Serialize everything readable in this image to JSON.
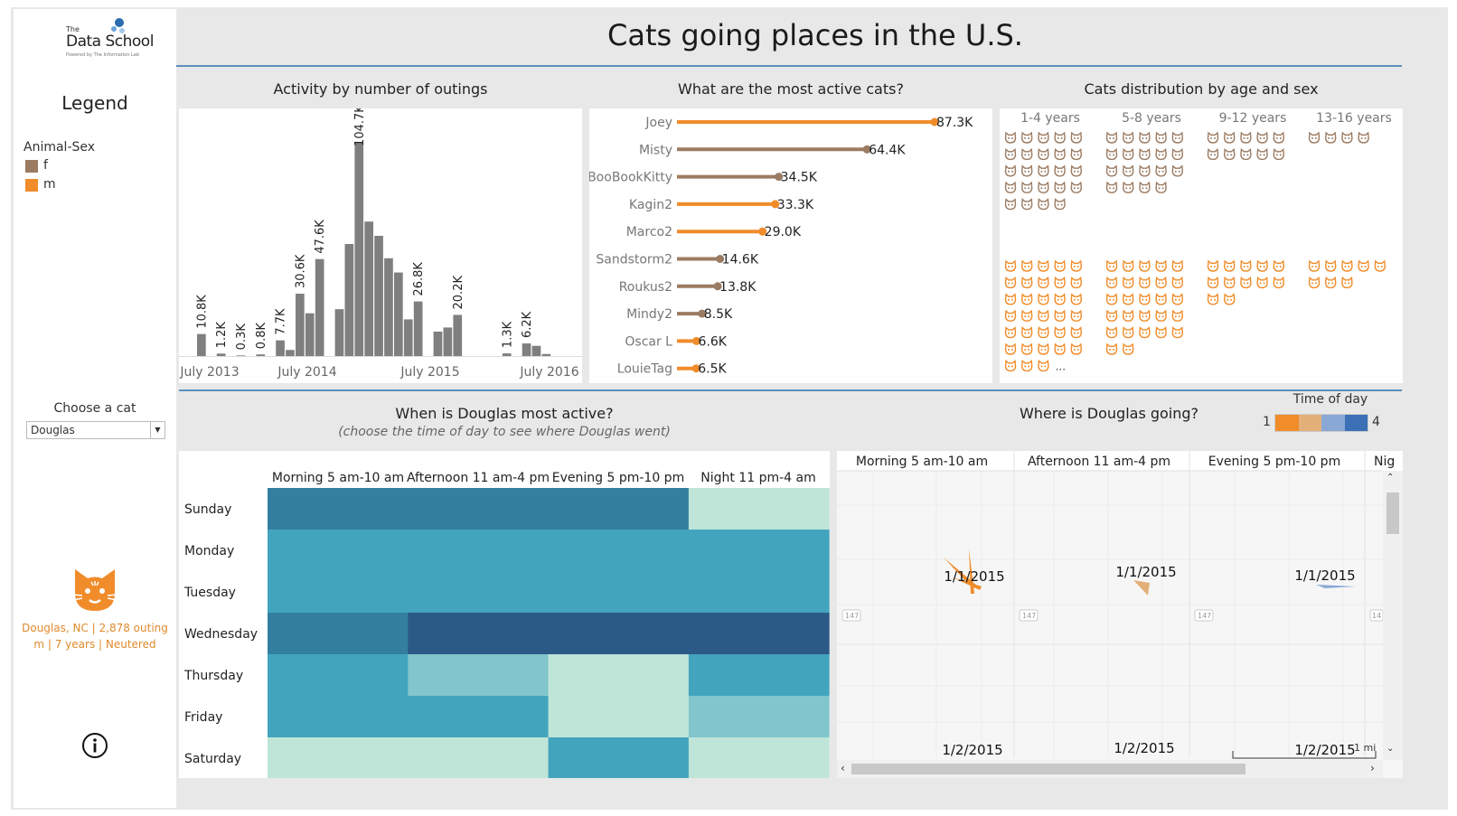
{
  "title": "Cats going places in the U.S.",
  "sidebar": {
    "logo_small": "The",
    "logo_main": "Data School",
    "logo_tag": "Powered by The Information Lab",
    "legend_title": "Legend",
    "legend_heading": "Animal-Sex",
    "legend_items": [
      {
        "label": "f",
        "color": "#9b7b62"
      },
      {
        "label": "m",
        "color": "#f08c2a"
      }
    ],
    "choose_label": "Choose a cat",
    "selected_cat": "Douglas",
    "cat_icon": "cat-face-icon",
    "cat_info_line1": "Douglas, NC | 2,878 outing",
    "cat_info_line2": "m | 7 years | Neutered",
    "info_icon": "info-icon"
  },
  "activity": {
    "title": "Activity by number of outings",
    "x_ticks": [
      "July 2013",
      "July 2014",
      "July 2015",
      "July 2016"
    ]
  },
  "active_cats": {
    "title": "What are the most active cats?"
  },
  "distribution": {
    "title": "Cats distribution by age and sex",
    "age_groups": [
      "1-4 years",
      "5-8 years",
      "9-12 years",
      "13-16 years"
    ],
    "ellipsis": "..."
  },
  "heatmap": {
    "title": "When is Douglas most active?",
    "subtitle": "(choose the time of day to see where Douglas went)"
  },
  "map": {
    "title": "Where is Douglas going?",
    "legend_title": "Time of day",
    "legend_min": "1",
    "legend_max": "4",
    "legend_colors": [
      "#f08c2a",
      "#e4b07a",
      "#8aa8d6",
      "#3b6fb6"
    ],
    "columns": [
      "Morning 5 am-10 am",
      "Afternoon 11 am-4 pm",
      "Evening 5 pm-10 pm",
      "Nig"
    ],
    "row_labels": [
      "1/1/2015",
      "1/1/2015",
      "1/1/2015",
      "1/2/2015",
      "1/2/2015",
      "1/2/2015"
    ],
    "road_labels": [
      "147",
      "147",
      "147",
      "14"
    ],
    "scale_label": "1 mi"
  },
  "chart_data": [
    {
      "type": "bar",
      "title": "Activity by number of outings",
      "x": [
        "2013-05",
        "2013-06",
        "2013-07",
        "2013-08",
        "2013-09",
        "2013-10",
        "2013-11",
        "2013-12",
        "2014-01",
        "2014-02",
        "2014-03",
        "2014-04",
        "2014-05",
        "2014-06",
        "2014-07",
        "2014-08",
        "2014-09",
        "2014-10",
        "2014-11",
        "2014-12",
        "2015-01",
        "2015-02",
        "2015-03",
        "2015-04",
        "2015-05",
        "2015-06",
        "2015-07",
        "2015-08",
        "2015-09",
        "2015-10",
        "2015-11",
        "2015-12",
        "2016-01",
        "2016-02",
        "2016-03",
        "2016-04",
        "2016-05"
      ],
      "values": [
        10.8,
        0,
        1.2,
        0,
        0.3,
        0,
        0.8,
        0,
        7.7,
        3,
        30.6,
        21,
        47.6,
        0,
        23,
        55,
        104.7,
        66,
        59,
        48,
        41,
        18,
        26.8,
        0,
        12,
        14,
        20.2,
        0,
        0,
        0,
        0,
        1.3,
        0,
        6.2,
        5,
        1,
        0
      ],
      "labels": [
        "10.8K",
        "",
        "1.2K",
        "",
        "0.3K",
        "",
        "0.8K",
        "",
        "7.7K",
        "",
        "30.6K",
        "",
        "47.6K",
        "",
        "",
        "",
        "104.7K",
        "",
        "",
        "",
        "",
        "",
        "26.8K",
        "",
        "",
        "",
        "20.2K",
        "",
        "",
        "",
        "",
        "1.3K",
        "",
        "6.2K",
        "",
        "",
        ""
      ],
      "ylim": [
        0,
        110
      ],
      "grid": false
    },
    {
      "type": "bar",
      "title": "What are the most active cats?",
      "categories": [
        "Joey",
        "Misty",
        "BooBookKitty",
        "Kagin2",
        "Marco2",
        "Sandstorm2",
        "Roukus2",
        "Mindy2",
        "Oscar L",
        "LouieTag"
      ],
      "values": [
        87.3,
        64.4,
        34.5,
        33.3,
        29.0,
        14.6,
        13.8,
        8.5,
        6.6,
        6.5
      ],
      "labels": [
        "87.3K",
        "64.4K",
        "34.5K",
        "33.3K",
        "29.0K",
        "14.6K",
        "13.8K",
        "8.5K",
        "6.6K",
        "6.5K"
      ],
      "sex": [
        "m",
        "f",
        "f",
        "m",
        "m",
        "f",
        "f",
        "f",
        "m",
        "m"
      ],
      "xlim": [
        0,
        90
      ]
    },
    {
      "type": "table",
      "title": "Cats distribution by age and sex",
      "columns": [
        "1-4 years",
        "5-8 years",
        "9-12 years",
        "13-16 years"
      ],
      "rows": [
        {
          "sex": "f",
          "counts": [
            24,
            19,
            10,
            4
          ]
        },
        {
          "sex": "m",
          "counts": [
            34,
            27,
            12,
            8
          ]
        }
      ]
    },
    {
      "type": "heatmap",
      "title": "When is Douglas most active?",
      "columns": [
        "Morning 5 am-10 am",
        "Afternoon 11 am-4 pm",
        "Evening 5 pm-10 pm",
        "Night 11 pm-4 am"
      ],
      "rows": [
        "Sunday",
        "Monday",
        "Tuesday",
        "Wednesday",
        "Thursday",
        "Friday",
        "Saturday"
      ],
      "values": [
        [
          3,
          3,
          3,
          1
        ],
        [
          2,
          2,
          2,
          2
        ],
        [
          2,
          2,
          2,
          2
        ],
        [
          3,
          4,
          4,
          4
        ],
        [
          2,
          1.5,
          1,
          2
        ],
        [
          2,
          2,
          1,
          1.5
        ],
        [
          1,
          1,
          2,
          1
        ]
      ],
      "colors": {
        "1": "#bfe5d8",
        "1.5": "#82c5cc",
        "2": "#43a4bd",
        "3": "#337f9f",
        "4": "#2c5a87"
      }
    }
  ]
}
